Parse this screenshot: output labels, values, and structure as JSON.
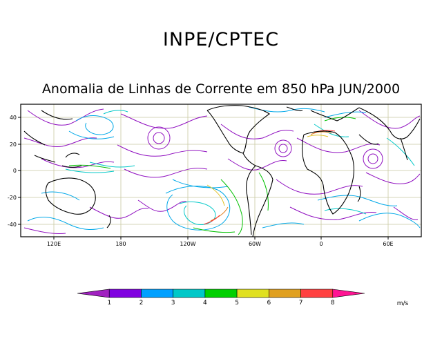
{
  "header": {
    "agency": "INPE/CPTEC",
    "title": "Anomalia de Linhas de Corrente em 850 hPa JUN/2000"
  },
  "map": {
    "y_ticks": [
      "40",
      "20",
      "0",
      "-20",
      "-40"
    ],
    "x_ticks": [
      "120E",
      "180",
      "120W",
      "60W",
      "0",
      "60E"
    ],
    "colors": {
      "land": "#000000",
      "grid": "#c8c8a0"
    }
  },
  "colorbar": {
    "labels": [
      "1",
      "2",
      "3",
      "4",
      "5",
      "6",
      "7",
      "8"
    ],
    "colors": [
      "#a020c0",
      "#8000e0",
      "#00a0ff",
      "#00c8c8",
      "#00d000",
      "#e0e020",
      "#e0a020",
      "#ff4040",
      "#ff1493"
    ],
    "units": "m/s"
  }
}
